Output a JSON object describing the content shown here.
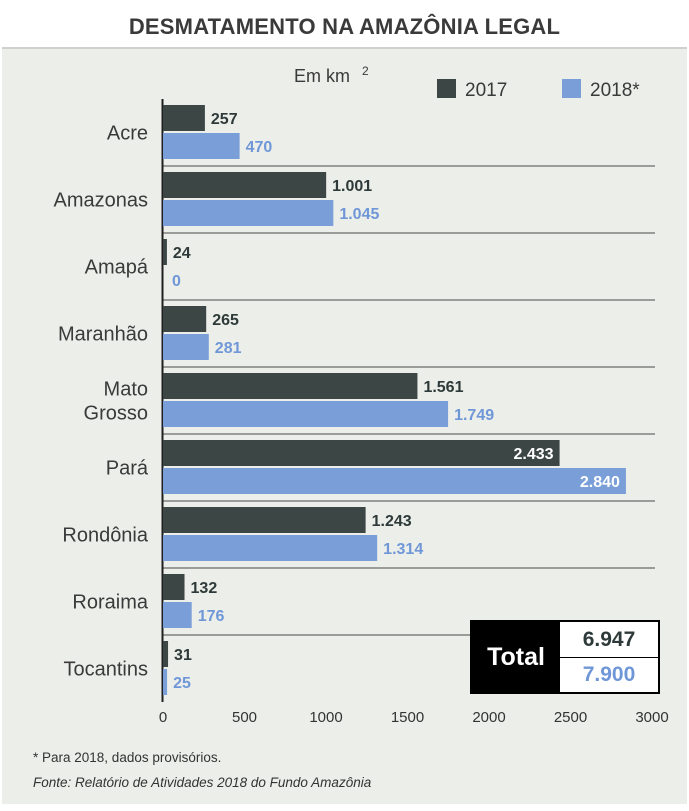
{
  "title": "DESMATAMENTO NA AMAZÔNIA LEGAL",
  "colors": {
    "s2017": "#3b4645",
    "s2018": "#7a9ed8",
    "label2017": "#2e3a39",
    "label2018": "#6f97d8"
  },
  "chart_data": {
    "type": "bar",
    "orientation": "horizontal",
    "unit_label": "Em km",
    "unit_superscript": "2",
    "categories": [
      [
        "Acre"
      ],
      [
        "Amazonas"
      ],
      [
        "Amapá"
      ],
      [
        "Maranhão"
      ],
      [
        "Mato",
        "Grosso"
      ],
      [
        "Pará"
      ],
      [
        "Rondônia"
      ],
      [
        "Roraima"
      ],
      [
        "Tocantins"
      ]
    ],
    "series": [
      {
        "name": "2017",
        "values": [
          257,
          1001,
          24,
          265,
          1561,
          2433,
          1243,
          132,
          31
        ],
        "labels": [
          "257",
          "1.001",
          "24",
          "265",
          "1.561",
          "2.433",
          "1.243",
          "132",
          "31"
        ]
      },
      {
        "name": "2018*",
        "values": [
          470,
          1045,
          0,
          281,
          1749,
          2840,
          1314,
          176,
          25
        ],
        "labels": [
          "470",
          "1.045",
          "0",
          "281",
          "1.749",
          "2.840",
          "1.314",
          "176",
          "25"
        ]
      }
    ],
    "xlim": [
      0,
      3000
    ],
    "xticks": [
      "0",
      "500",
      "1000",
      "1500",
      "2000",
      "2500",
      "3000"
    ],
    "legend": [
      "2017",
      "2018*"
    ],
    "legend_position": "top-right"
  },
  "total": {
    "label": "Total",
    "value_2017": "6.947",
    "value_2018": "7.900"
  },
  "footnotes": {
    "provisional": "* Para 2018, dados provisórios.",
    "source": "Fonte: Relatório de Atividades 2018 do Fundo Amazônia"
  }
}
